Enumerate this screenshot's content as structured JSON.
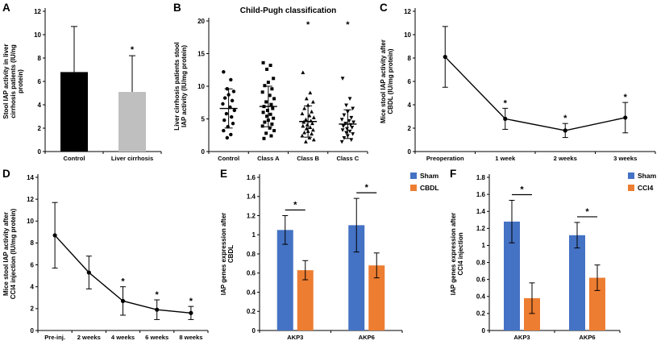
{
  "figure": {
    "sig_symbol": "*",
    "background": "#ffffff",
    "colors": {
      "sham_blue": "#4472c4",
      "treatment_orange": "#ed7d31",
      "control_black": "#000000",
      "cirrhosis_gray": "#bfbfbf"
    }
  },
  "chart_data": [
    {
      "panel": "A",
      "type": "bar",
      "title": "",
      "ylabel": "Stool IAP activity in liver cirrhosis patients (IU/ng protein)",
      "categories": [
        "Control",
        "Liver cirrhosis"
      ],
      "values": [
        6.8,
        5.1
      ],
      "errors": [
        3.9,
        3.1
      ],
      "bar_colors": [
        "#000000",
        "#bfbfbf"
      ],
      "sig": [
        false,
        true
      ],
      "ylim": [
        0,
        12
      ],
      "yticks": [
        0,
        2,
        4,
        6,
        8,
        10,
        12
      ],
      "grid": false,
      "legend_position": "none"
    },
    {
      "panel": "B",
      "type": "scatter",
      "title": "Child-Pugh classification",
      "ylabel": "Liver cirrhosis patients stool IAP activity (IU/mg protein)",
      "categories": [
        "Control",
        "Class A",
        "Class B",
        "Class C"
      ],
      "markers": [
        "circle",
        "square",
        "triangle-up",
        "triangle-down"
      ],
      "groups": [
        {
          "mean": 6.6,
          "sd": 3.0,
          "points": [
            12.2,
            11.0,
            9.6,
            9.2,
            8.7,
            8.2,
            7.8,
            7.3,
            6.8,
            6.3,
            5.8,
            5.3,
            4.8,
            4.3,
            3.8,
            3.2,
            2.6,
            2.1
          ]
        },
        {
          "mean": 6.9,
          "sd": 3.1,
          "points": [
            13.6,
            13.2,
            12.6,
            11.2,
            10.6,
            10.1,
            9.6,
            9.1,
            8.6,
            8.1,
            7.6,
            7.2,
            6.9,
            6.6,
            6.3,
            6.0,
            5.7,
            5.4,
            5.1,
            4.8,
            4.5,
            4.2,
            3.9,
            3.6,
            3.2,
            2.8,
            2.4,
            2.0
          ]
        },
        {
          "mean": 4.6,
          "sd": 2.4,
          "points": [
            12.1,
            9.0,
            8.1,
            7.6,
            7.1,
            6.6,
            6.1,
            5.8,
            5.5,
            5.2,
            4.9,
            4.7,
            4.5,
            4.3,
            4.1,
            3.9,
            3.7,
            3.5,
            3.3,
            3.1,
            2.9,
            2.7,
            2.4,
            2.1,
            1.8,
            1.5
          ]
        },
        {
          "mean": 4.2,
          "sd": 2.2,
          "points": [
            11.2,
            8.1,
            7.1,
            6.6,
            6.1,
            5.6,
            5.2,
            4.9,
            4.7,
            4.5,
            4.3,
            4.1,
            3.9,
            3.7,
            3.5,
            3.3,
            3.1,
            2.9,
            2.7,
            2.4,
            2.1,
            1.8,
            1.5
          ]
        }
      ],
      "sig": [
        false,
        false,
        true,
        true
      ],
      "ylim": [
        0,
        20
      ],
      "yticks": [
        0,
        5,
        10,
        15,
        20
      ],
      "grid": false,
      "legend_position": "none"
    },
    {
      "panel": "C",
      "type": "line",
      "title": "",
      "ylabel": "Mice stool IAP activity after CBDL (IU/mg protein)",
      "categories": [
        "Preoperation",
        "1 week",
        "2 weeks",
        "3 weeks"
      ],
      "values": [
        8.1,
        2.8,
        1.8,
        2.9
      ],
      "errors": [
        2.6,
        0.9,
        0.6,
        1.3
      ],
      "sig": [
        false,
        true,
        true,
        true
      ],
      "line_color": "#000000",
      "ylim": [
        0,
        12
      ],
      "yticks": [
        0,
        2,
        4,
        6,
        8,
        10,
        12
      ],
      "grid": false,
      "legend_position": "none"
    },
    {
      "panel": "D",
      "type": "line",
      "title": "",
      "ylabel": "Mice stool IAP activity after CCl4 injection (IU/mg protein)",
      "categories": [
        "Pre-inj.",
        "2 weeks",
        "4 weeks",
        "6 weeks",
        "8 weeks"
      ],
      "values": [
        8.7,
        5.3,
        2.7,
        1.9,
        1.6
      ],
      "errors": [
        3.0,
        1.5,
        1.3,
        0.9,
        0.6
      ],
      "sig": [
        false,
        false,
        true,
        true,
        true
      ],
      "line_color": "#000000",
      "ylim": [
        0,
        14
      ],
      "yticks": [
        0,
        2,
        4,
        6,
        8,
        10,
        12,
        14
      ],
      "grid": false,
      "legend_position": "none"
    },
    {
      "panel": "E",
      "type": "grouped_bar",
      "title": "",
      "ylabel": "IAP genes expression after CBDL",
      "categories": [
        "AKP3",
        "AKP6"
      ],
      "series": [
        {
          "name": "Sham",
          "color": "#4472c4",
          "values": [
            1.05,
            1.1
          ],
          "errors": [
            0.15,
            0.28
          ]
        },
        {
          "name": "CBDL",
          "color": "#ed7d31",
          "values": [
            0.63,
            0.68
          ],
          "errors": [
            0.1,
            0.13
          ]
        }
      ],
      "sig_pairs": [
        true,
        true
      ],
      "ylim": [
        0,
        1.6
      ],
      "yticks": [
        0,
        0.2,
        0.4,
        0.6,
        0.8,
        1,
        1.2,
        1.4,
        1.6
      ],
      "grid": false,
      "legend_position": "right"
    },
    {
      "panel": "F",
      "type": "grouped_bar",
      "title": "",
      "ylabel": "IAP genes expression after CCl4 injection",
      "categories": [
        "AKP3",
        "AKP6"
      ],
      "series": [
        {
          "name": "Sham",
          "color": "#4472c4",
          "values": [
            1.28,
            1.12
          ],
          "errors": [
            0.25,
            0.15
          ]
        },
        {
          "name": "CCl4",
          "color": "#ed7d31",
          "values": [
            0.38,
            0.62
          ],
          "errors": [
            0.18,
            0.15
          ]
        }
      ],
      "sig_pairs": [
        true,
        true
      ],
      "ylim": [
        0,
        1.8
      ],
      "yticks": [
        0,
        0.2,
        0.4,
        0.6,
        0.8,
        1,
        1.2,
        1.4,
        1.6,
        1.8
      ],
      "grid": false,
      "legend_position": "right"
    }
  ]
}
